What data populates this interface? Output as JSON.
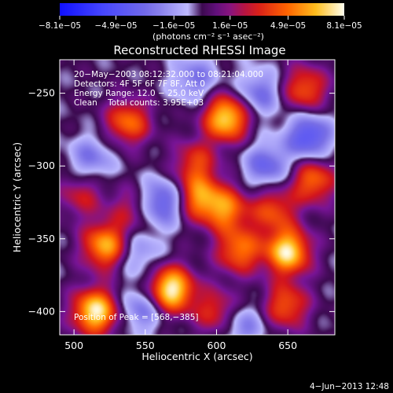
{
  "chart_data": {
    "type": "heatmap",
    "title": "Reconstructed RHESSI Image",
    "xlabel": "Heliocentric X (arcsec)",
    "ylabel": "Heliocentric Y (arcsec)",
    "xlim": [
      490,
      683
    ],
    "ylim": [
      -416,
      -227
    ],
    "x_ticks": [
      {
        "value": 500,
        "label": "500"
      },
      {
        "value": 550,
        "label": "550"
      },
      {
        "value": 600,
        "label": "600"
      },
      {
        "value": 650,
        "label": "650"
      }
    ],
    "y_ticks": [
      {
        "value": -250,
        "label": "−250"
      },
      {
        "value": -300,
        "label": "−300"
      },
      {
        "value": -350,
        "label": "−350"
      },
      {
        "value": -400,
        "label": "−400"
      }
    ],
    "colorbar": {
      "unit_label": "(photons cm⁻² s⁻¹ asec⁻²)",
      "min": -8.1e-05,
      "max": 8.1e-05,
      "ticks": [
        {
          "value": -8.1e-05,
          "label": "−8.1e−05"
        },
        {
          "value": -4.9e-05,
          "label": "−4.9e−05"
        },
        {
          "value": -1.6e-05,
          "label": "−1.6e−05"
        },
        {
          "value": 1.6e-05,
          "label": "1.6e−05"
        },
        {
          "value": 4.9e-05,
          "label": "4.9e−05"
        },
        {
          "value": 8.1e-05,
          "label": "8.1e−05"
        }
      ]
    },
    "annotations": [
      "20−May−2003 08:12:32.000 to 08:21:04.000",
      "Detectors: 4F 5F 6F 7F 8F, Att 0",
      "Energy Range: 12.0 − 25.0 keV",
      "Clean    Total counts: 3.95E+03"
    ],
    "peak_label": "Position of Peak = [568,−385]",
    "peak": [
      568,
      -385
    ],
    "grid": false,
    "sources": [
      {
        "x": 568,
        "y": -385,
        "amp": 1.0
      },
      {
        "x": 515,
        "y": -400,
        "amp": 0.95
      },
      {
        "x": 607,
        "y": -267,
        "amp": 0.9
      },
      {
        "x": 650,
        "y": -359,
        "amp": 0.92
      },
      {
        "x": 522,
        "y": -355,
        "amp": 0.78
      },
      {
        "x": 538,
        "y": -270,
        "amp": 0.6
      },
      {
        "x": 616,
        "y": -358,
        "amp": 0.62
      },
      {
        "x": 588,
        "y": -322,
        "amp": 0.65
      },
      {
        "x": 607,
        "y": -330,
        "amp": 0.6
      },
      {
        "x": 662,
        "y": -247,
        "amp": 0.55
      },
      {
        "x": 668,
        "y": -310,
        "amp": 0.6
      },
      {
        "x": 649,
        "y": -396,
        "amp": 0.55
      },
      {
        "x": 585,
        "y": -298,
        "amp": 0.45
      },
      {
        "x": 640,
        "y": -330,
        "amp": 0.5
      },
      {
        "x": 505,
        "y": -320,
        "amp": 0.35
      },
      {
        "x": 600,
        "y": -400,
        "amp": 0.45
      },
      {
        "x": 540,
        "y": -330,
        "amp": 0.3
      }
    ],
    "negative_regions": [
      {
        "x": 562,
        "y": -325,
        "amp": -0.55
      },
      {
        "x": 665,
        "y": -280,
        "amp": -0.6
      },
      {
        "x": 635,
        "y": -300,
        "amp": -0.45
      },
      {
        "x": 630,
        "y": -250,
        "amp": -0.4
      },
      {
        "x": 548,
        "y": -398,
        "amp": -0.4
      },
      {
        "x": 585,
        "y": -240,
        "amp": -0.35
      },
      {
        "x": 512,
        "y": -295,
        "amp": -0.35
      },
      {
        "x": 618,
        "y": -410,
        "amp": -0.35
      },
      {
        "x": 545,
        "y": -360,
        "amp": -0.3
      }
    ]
  },
  "footer": {
    "timestamp": "4−Jun−2013 12:48"
  }
}
